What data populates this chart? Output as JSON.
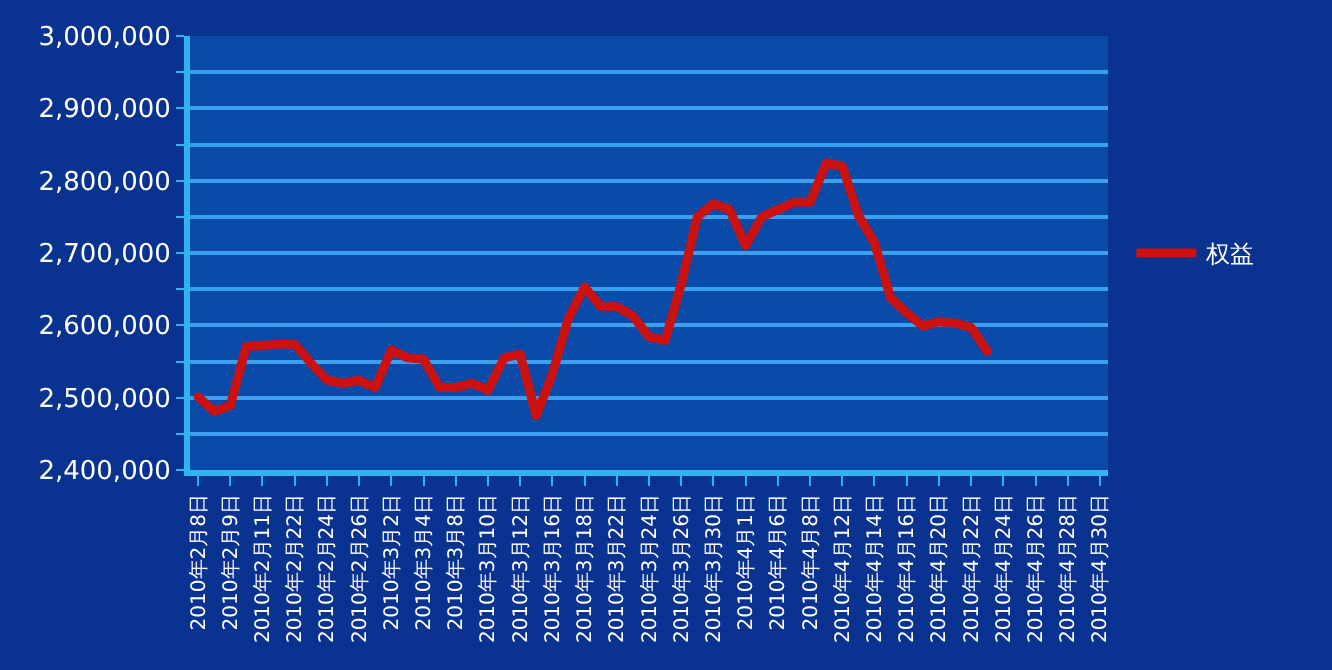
{
  "chart_data": {
    "type": "line",
    "categories": [
      "2010年2月8日",
      null,
      "2010年2月9日",
      null,
      "2010年2月11日",
      null,
      "2010年2月22日",
      null,
      "2010年2月24日",
      null,
      "2010年2月26日",
      null,
      "2010年3月2日",
      null,
      "2010年3月4日",
      null,
      "2010年3月8日",
      null,
      "2010年3月10日",
      null,
      "2010年3月12日",
      null,
      "2010年3月16日",
      null,
      "2010年3月18日",
      null,
      "2010年3月22日",
      null,
      "2010年3月24日",
      null,
      "2010年3月26日",
      null,
      "2010年3月30日",
      null,
      "2010年4月1日",
      null,
      "2010年4月6日",
      null,
      "2010年4月8日",
      null,
      "2010年4月12日",
      null,
      "2010年4月14日",
      null,
      "2010年4月16日",
      null,
      "2010年4月20日",
      null,
      "2010年4月22日",
      null,
      "2010年4月24日",
      null,
      "2010年4月26日",
      null,
      "2010年4月28日",
      null,
      "2010年4月30日"
    ],
    "series": [
      {
        "name": "权益",
        "color": "#cc1111",
        "values": [
          2501000,
          2481000,
          2489000,
          2571000,
          2572000,
          2574000,
          2574000,
          2548000,
          2524000,
          2520000,
          2524000,
          2514000,
          2566000,
          2555000,
          2553000,
          2514000,
          2514000,
          2520000,
          2510000,
          2555000,
          2560000,
          2475000,
          2533000,
          2610000,
          2653000,
          2626000,
          2626000,
          2613000,
          2584000,
          2579000,
          2657000,
          2750000,
          2768000,
          2760000,
          2710000,
          2750000,
          2760000,
          2770000,
          2770000,
          2824000,
          2820000,
          2752000,
          2714000,
          2638000,
          2617000,
          2599000,
          2605000,
          2603000,
          2597000,
          2564000,
          null,
          null,
          null,
          null,
          null,
          null,
          null
        ]
      }
    ],
    "ylim": [
      2400000,
      3000000
    ],
    "yticks": [
      {
        "value": 2400000,
        "label": "2,400,000"
      },
      {
        "value": 2450000,
        "label": null
      },
      {
        "value": 2500000,
        "label": "2,500,000"
      },
      {
        "value": 2550000,
        "label": null
      },
      {
        "value": 2600000,
        "label": "2,600,000"
      },
      {
        "value": 2650000,
        "label": null
      },
      {
        "value": 2700000,
        "label": "2,700,000"
      },
      {
        "value": 2750000,
        "label": null
      },
      {
        "value": 2800000,
        "label": "2,800,000"
      },
      {
        "value": 2850000,
        "label": null
      },
      {
        "value": 2900000,
        "label": "2,900,000"
      },
      {
        "value": 2950000,
        "label": null
      },
      {
        "value": 3000000,
        "label": "3,000,000"
      }
    ],
    "grid": "y",
    "legend": "right",
    "marker": "none",
    "line_style": "solid"
  }
}
